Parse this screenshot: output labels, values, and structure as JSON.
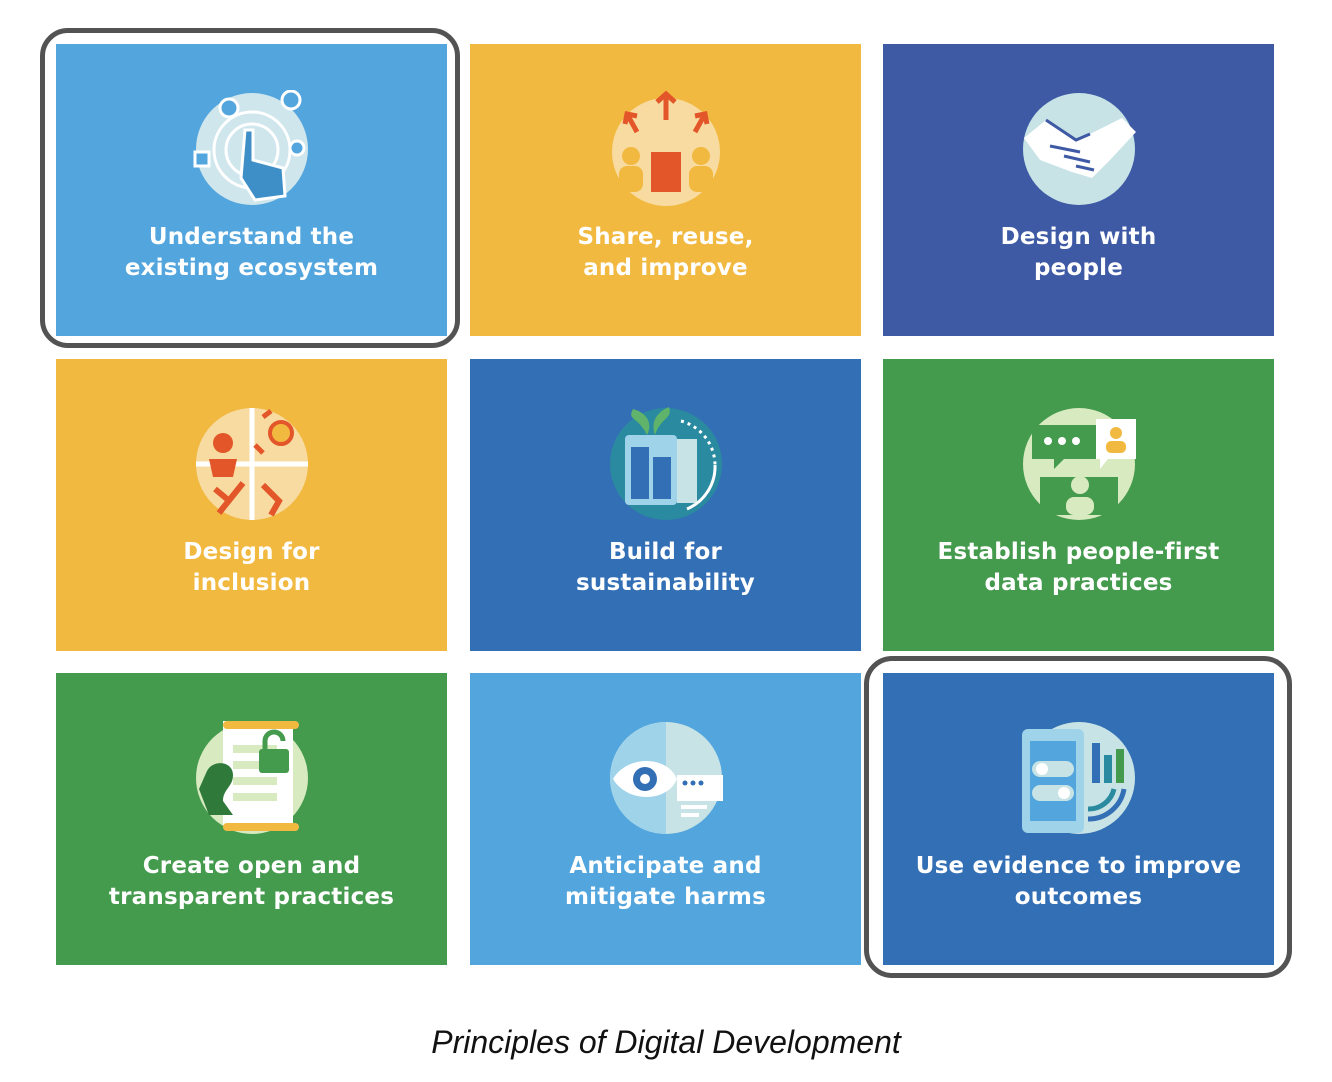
{
  "tiles": [
    {
      "label": "Understand the\nexisting ecosystem",
      "icon": "ecosystem-touch-icon",
      "color": "#53a5dd"
    },
    {
      "label": "Share, reuse,\nand improve",
      "icon": "share-reuse-icon",
      "color": "#f2b941"
    },
    {
      "label": "Design with\npeople",
      "icon": "handshake-icon",
      "color": "#3f5aa5"
    },
    {
      "label": "Design for\ninclusion",
      "icon": "inclusion-people-icon",
      "color": "#f2b941"
    },
    {
      "label": "Build for\nsustainability",
      "icon": "sustainability-chart-icon",
      "color": "#336fb5"
    },
    {
      "label": "Establish people-first\ndata practices",
      "icon": "data-chat-icon",
      "color": "#449a4d"
    },
    {
      "label": "Create open and\ntransparent practices",
      "icon": "document-lock-icon",
      "color": "#449a4d"
    },
    {
      "label": "Anticipate and\nmitigate harms",
      "icon": "eye-watch-icon",
      "color": "#53a5dd"
    },
    {
      "label": "Use evidence to improve\noutcomes",
      "icon": "evidence-phone-icon",
      "color": "#336fb5"
    }
  ],
  "highlighted": [
    "Understand the\nexisting ecosystem",
    "Use evidence to improve\noutcomes"
  ],
  "caption": "Principles of Digital Development"
}
